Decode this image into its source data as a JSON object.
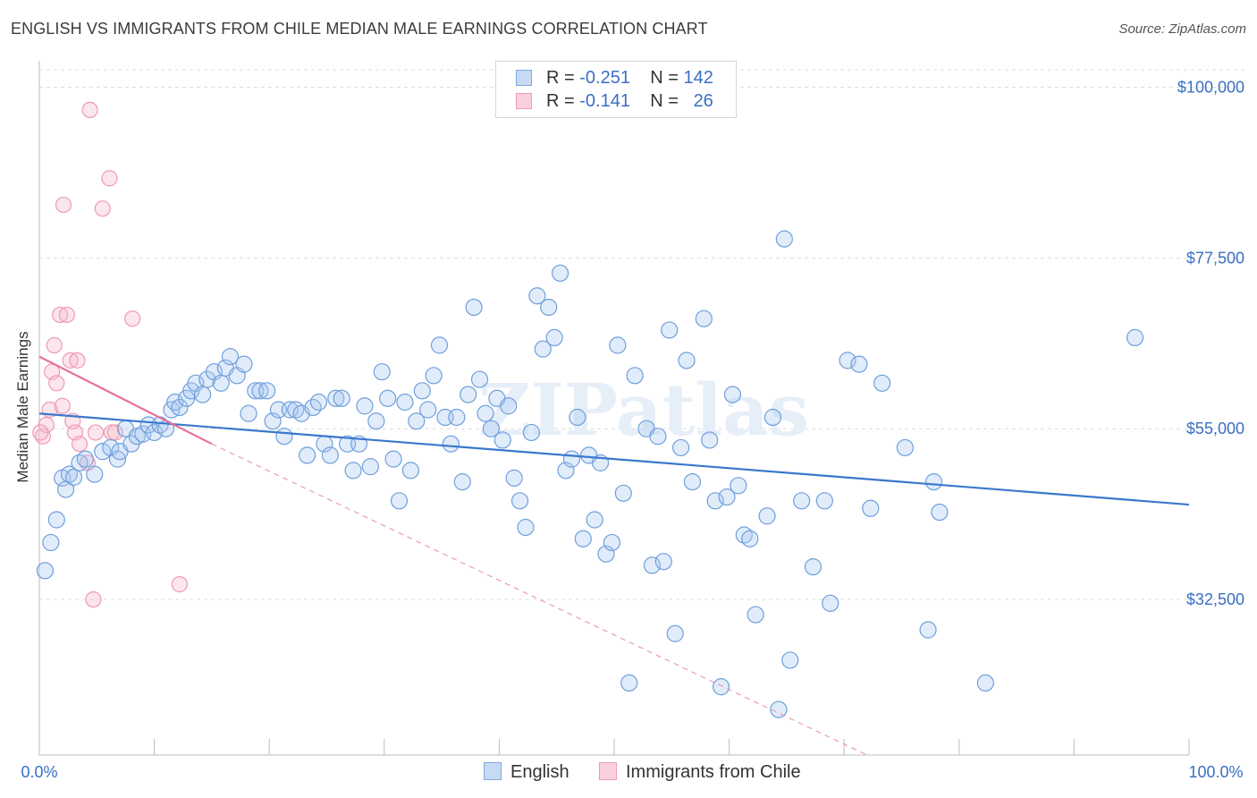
{
  "title": "ENGLISH VS IMMIGRANTS FROM CHILE MEDIAN MALE EARNINGS CORRELATION CHART",
  "source": "Source: ZipAtlas.com",
  "watermark": "ZIPatlas",
  "legend": {
    "rows": [
      {
        "r_label": "R =",
        "r_value": "-0.251",
        "n_label": "N =",
        "n_value": "142"
      },
      {
        "r_label": "R =",
        "r_value": "-0.141",
        "n_label": "N =",
        "n_value": "26"
      }
    ]
  },
  "colors": {
    "english": "#a9c8f0",
    "english_line": "#3a78cc",
    "chile": "#f5b8cb",
    "chile_line": "#e8709a",
    "axis_text": "#3a6fc4"
  },
  "chart_data": {
    "type": "scatter",
    "xlabel": "",
    "ylabel": "Median Male Earnings",
    "xlim": [
      0,
      100
    ],
    "ylim": [
      12000,
      103000
    ],
    "x_tick_labels": [
      "0.0%",
      "100.0%"
    ],
    "y_ticks": [
      {
        "value": 100000,
        "label": "$100,000"
      },
      {
        "value": 77500,
        "label": "$77,500"
      },
      {
        "value": 55000,
        "label": "$55,000"
      },
      {
        "value": 32500,
        "label": "$32,500"
      }
    ],
    "grid": "horizontal dashed",
    "legend_position": "top-center",
    "series": [
      {
        "name": "English",
        "trend": {
          "x0": 0,
          "y0": 57000,
          "x1": 100,
          "y1": 45000
        },
        "points": [
          [
            0.5,
            36300
          ],
          [
            1,
            40000
          ],
          [
            1.5,
            43000
          ],
          [
            2,
            48500
          ],
          [
            2.3,
            47000
          ],
          [
            2.6,
            49000
          ],
          [
            3,
            48600
          ],
          [
            3.5,
            50500
          ],
          [
            4,
            51000
          ],
          [
            4.8,
            49000
          ],
          [
            5.5,
            52000
          ],
          [
            6.2,
            52500
          ],
          [
            6.8,
            51000
          ],
          [
            7,
            52000
          ],
          [
            7.5,
            55000
          ],
          [
            8,
            53000
          ],
          [
            8.5,
            54000
          ],
          [
            9,
            54300
          ],
          [
            9.5,
            55500
          ],
          [
            10,
            54500
          ],
          [
            10.5,
            55500
          ],
          [
            11,
            55000
          ],
          [
            11.5,
            57500
          ],
          [
            11.8,
            58500
          ],
          [
            12.2,
            57800
          ],
          [
            12.8,
            59000
          ],
          [
            13.2,
            60000
          ],
          [
            13.6,
            61000
          ],
          [
            14.2,
            59500
          ],
          [
            14.6,
            61500
          ],
          [
            15.2,
            62500
          ],
          [
            15.8,
            61000
          ],
          [
            16.2,
            63000
          ],
          [
            16.6,
            64500
          ],
          [
            17.2,
            62000
          ],
          [
            17.8,
            63500
          ],
          [
            18.2,
            57000
          ],
          [
            18.8,
            60000
          ],
          [
            19.2,
            60000
          ],
          [
            19.8,
            60000
          ],
          [
            20.3,
            56000
          ],
          [
            20.8,
            57500
          ],
          [
            21.3,
            54000
          ],
          [
            21.8,
            57500
          ],
          [
            22.3,
            57500
          ],
          [
            22.8,
            57000
          ],
          [
            23.3,
            51500
          ],
          [
            23.8,
            57800
          ],
          [
            24.3,
            58500
          ],
          [
            24.8,
            53000
          ],
          [
            25.3,
            51500
          ],
          [
            25.8,
            59000
          ],
          [
            26.3,
            59000
          ],
          [
            26.8,
            53000
          ],
          [
            27.3,
            49500
          ],
          [
            27.8,
            53000
          ],
          [
            28.3,
            58000
          ],
          [
            28.8,
            50000
          ],
          [
            29.3,
            56000
          ],
          [
            29.8,
            62500
          ],
          [
            30.3,
            59000
          ],
          [
            30.8,
            51000
          ],
          [
            31.3,
            45500
          ],
          [
            31.8,
            58500
          ],
          [
            32.3,
            49500
          ],
          [
            32.8,
            56000
          ],
          [
            33.3,
            60000
          ],
          [
            33.8,
            57500
          ],
          [
            34.3,
            62000
          ],
          [
            34.8,
            66000
          ],
          [
            35.3,
            56500
          ],
          [
            35.8,
            53000
          ],
          [
            36.3,
            56500
          ],
          [
            36.8,
            48000
          ],
          [
            37.3,
            59500
          ],
          [
            37.8,
            71000
          ],
          [
            38.3,
            61500
          ],
          [
            38.8,
            57000
          ],
          [
            39.3,
            55000
          ],
          [
            39.8,
            59000
          ],
          [
            40.3,
            53500
          ],
          [
            40.8,
            58000
          ],
          [
            41.3,
            48500
          ],
          [
            41.8,
            45500
          ],
          [
            42.3,
            42000
          ],
          [
            42.8,
            54500
          ],
          [
            43.3,
            72500
          ],
          [
            43.8,
            65500
          ],
          [
            44.3,
            71000
          ],
          [
            44.8,
            67000
          ],
          [
            45.3,
            75500
          ],
          [
            45.8,
            49500
          ],
          [
            46.3,
            51000
          ],
          [
            46.8,
            56500
          ],
          [
            47.3,
            40500
          ],
          [
            47.8,
            51500
          ],
          [
            48.3,
            43000
          ],
          [
            48.8,
            50500
          ],
          [
            49.3,
            38500
          ],
          [
            49.8,
            40000
          ],
          [
            50.3,
            66000
          ],
          [
            50.8,
            46500
          ],
          [
            51.3,
            21500
          ],
          [
            51.8,
            62000
          ],
          [
            52.8,
            55000
          ],
          [
            53.3,
            37000
          ],
          [
            53.8,
            54000
          ],
          [
            54.3,
            37500
          ],
          [
            54.8,
            68000
          ],
          [
            55.3,
            28000
          ],
          [
            55.8,
            52500
          ],
          [
            56.3,
            64000
          ],
          [
            56.8,
            48000
          ],
          [
            57.8,
            69500
          ],
          [
            58.3,
            53500
          ],
          [
            58.8,
            45500
          ],
          [
            59.3,
            21000
          ],
          [
            59.8,
            46000
          ],
          [
            60.3,
            59500
          ],
          [
            60.8,
            47500
          ],
          [
            61.3,
            41000
          ],
          [
            61.8,
            40500
          ],
          [
            62.3,
            30500
          ],
          [
            63.3,
            43500
          ],
          [
            63.8,
            56500
          ],
          [
            64.3,
            18000
          ],
          [
            64.8,
            80000
          ],
          [
            65.3,
            24500
          ],
          [
            66.3,
            45500
          ],
          [
            67.3,
            36800
          ],
          [
            68.3,
            45500
          ],
          [
            68.8,
            32000
          ],
          [
            70.3,
            64000
          ],
          [
            71.3,
            63500
          ],
          [
            72.3,
            44500
          ],
          [
            73.3,
            61000
          ],
          [
            75.3,
            52500
          ],
          [
            77.3,
            28500
          ],
          [
            77.8,
            48000
          ],
          [
            78.3,
            44000
          ],
          [
            82.3,
            21500
          ],
          [
            95.3,
            67000
          ]
        ]
      },
      {
        "name": "Immigrants from Chile",
        "trend": {
          "x0": 0,
          "y0": 64500,
          "x1": 15,
          "y1": 53000,
          "dashed_to": {
            "x": 72,
            "y": 12000
          }
        },
        "points": [
          [
            0.3,
            54000
          ],
          [
            0.6,
            55500
          ],
          [
            0.9,
            57500
          ],
          [
            1.1,
            62500
          ],
          [
            1.3,
            66000
          ],
          [
            1.5,
            61000
          ],
          [
            1.8,
            70000
          ],
          [
            2.0,
            58000
          ],
          [
            2.1,
            84500
          ],
          [
            2.4,
            70000
          ],
          [
            2.7,
            64000
          ],
          [
            2.9,
            56000
          ],
          [
            3.1,
            54500
          ],
          [
            3.3,
            64000
          ],
          [
            3.5,
            53000
          ],
          [
            4.2,
            50500
          ],
          [
            4.4,
            97000
          ],
          [
            4.7,
            32500
          ],
          [
            4.9,
            54500
          ],
          [
            5.5,
            84000
          ],
          [
            6.1,
            88000
          ],
          [
            6.3,
            54500
          ],
          [
            6.6,
            54500
          ],
          [
            8.1,
            69500
          ],
          [
            12.2,
            34500
          ],
          [
            0.1,
            54500
          ]
        ]
      }
    ]
  }
}
